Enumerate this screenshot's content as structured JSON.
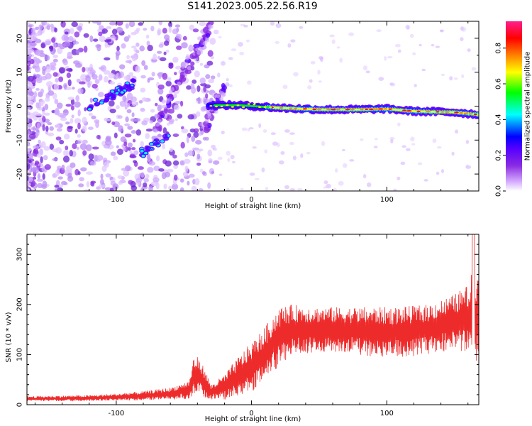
{
  "title": "S141.2023.005.22.56.R19",
  "chart_data": [
    {
      "type": "heatmap",
      "xlabel": "Height of straight line (km)",
      "ylabel": "Frequency (Hz)",
      "xlim": [
        -166,
        168
      ],
      "ylim": [
        -25,
        25
      ],
      "xticks": [
        -100,
        0,
        100
      ],
      "yticks": [
        -20,
        -10,
        0,
        10,
        20
      ],
      "colorbar": {
        "label": "Normalized spectral amplitude",
        "range": [
          0,
          0.95
        ],
        "ticks": [
          0.0,
          0.2,
          0.4,
          0.6,
          0.8
        ],
        "colors": [
          "#ffffff",
          "#d9b3ff",
          "#8a2be2",
          "#5500ff",
          "#0000ff",
          "#00ffff",
          "#00ff00",
          "#ffff00",
          "#ff8000",
          "#ff0000",
          "#ff1f8f"
        ]
      },
      "features": {
        "carrier_band": {
          "x_start": -32,
          "x_end": 168,
          "frequency": [
            0.2,
            0.3,
            -0.5,
            -1.0,
            -1.0,
            -0.8,
            -1.5,
            -1.8,
            -2.5
          ],
          "x": [
            -30,
            -10,
            20,
            50,
            80,
            100,
            120,
            150,
            168
          ]
        },
        "ray_upper": {
          "x": [
            -70,
            -30
          ],
          "frequency": [
            -5,
            24
          ]
        },
        "ray_lower": {
          "x": [
            -35,
            -20
          ],
          "frequency": [
            -7,
            6
          ]
        },
        "cluster_left": {
          "x": [
            -120,
            -85
          ],
          "frequency": [
            0,
            7
          ]
        },
        "cluster_lower": {
          "x": [
            -82,
            -60
          ],
          "frequency": [
            -14,
            -8
          ]
        }
      }
    },
    {
      "type": "line",
      "xlabel": "Height of straight line (km)",
      "ylabel": "SNR (10 * v/v)",
      "xlim": [
        -166,
        168
      ],
      "ylim": [
        0,
        340
      ],
      "xticks": [
        -100,
        0,
        100
      ],
      "yticks": [
        0,
        100,
        200,
        300
      ],
      "color": "#ee2b2b",
      "envelope": {
        "x": [
          -166,
          -120,
          -100,
          -80,
          -60,
          -46,
          -43,
          -40,
          -35,
          -30,
          -20,
          -10,
          0,
          10,
          20,
          30,
          50,
          70,
          90,
          110,
          130,
          150,
          160,
          165,
          168
        ],
        "center": [
          12,
          13,
          15,
          18,
          22,
          30,
          55,
          60,
          45,
          25,
          35,
          55,
          75,
          100,
          135,
          150,
          150,
          150,
          145,
          145,
          150,
          165,
          170,
          180,
          175
        ],
        "spread": [
          5,
          6,
          7,
          9,
          12,
          18,
          40,
          35,
          30,
          15,
          25,
          40,
          50,
          55,
          60,
          50,
          45,
          45,
          50,
          50,
          50,
          55,
          70,
          100,
          80
        ]
      }
    }
  ]
}
